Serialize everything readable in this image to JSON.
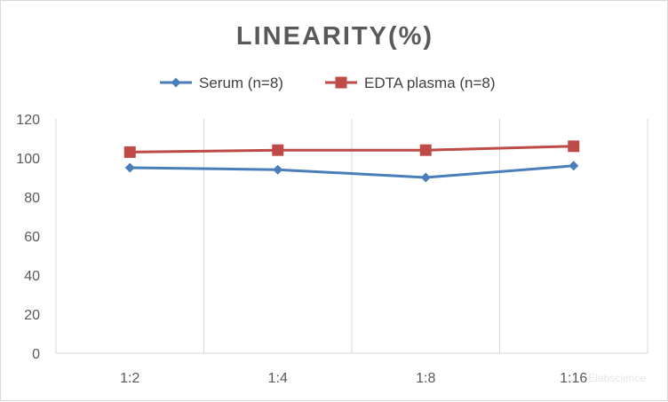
{
  "chart_data": {
    "type": "line",
    "title": "LINEARITY(%)",
    "categories": [
      "1:2",
      "1:4",
      "1:8",
      "1:16"
    ],
    "series": [
      {
        "name": "Serum (n=8)",
        "values": [
          95,
          94,
          90,
          96
        ],
        "color": "#4a7ebb",
        "marker": "diamond"
      },
      {
        "name": "EDTA plasma (n=8)",
        "values": [
          103,
          104,
          104,
          106
        ],
        "color": "#be4b48",
        "marker": "square"
      }
    ],
    "ylim": [
      0,
      120
    ],
    "yticks": [
      "0",
      "20",
      "40",
      "60",
      "80",
      "100",
      "120"
    ],
    "grid": "vertical",
    "legend_position": "top",
    "watermark": "Elabscience"
  }
}
